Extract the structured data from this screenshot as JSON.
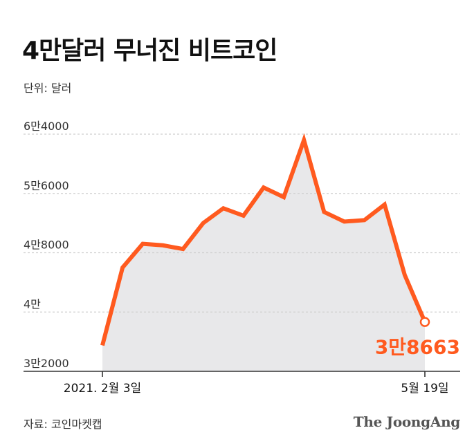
{
  "header": {
    "title": "4만달러 무너진 비트코인",
    "unit": "단위: 달러"
  },
  "footer": {
    "source": "자료: 코인마켓캡",
    "brand": "The JoongAng"
  },
  "colors": {
    "line": "#ff5a1f",
    "area": "#e8e8ea",
    "grid": "#cfcfcf",
    "axis": "#333333",
    "text": "#333333",
    "end_label": "#ff5a1f"
  },
  "chart_data": {
    "type": "area",
    "title": "4만달러 무너진 비트코인",
    "ylabel": "단위: 달러",
    "ylim": [
      32000,
      64000
    ],
    "y_ticks": [
      {
        "value": 32000,
        "label": "3만2000"
      },
      {
        "value": 40000,
        "label": "4만"
      },
      {
        "value": 48000,
        "label": "4만8000"
      },
      {
        "value": 56000,
        "label": "5만6000"
      },
      {
        "value": 64000,
        "label": "6만4000"
      }
    ],
    "x_labels": [
      {
        "text": "2021. 2월 3일",
        "index": 0
      },
      {
        "text": "5월 19일",
        "index": 16
      }
    ],
    "x": [
      "2021-02-03",
      "2021-02-10",
      "2021-02-17",
      "2021-02-24",
      "2021-03-03",
      "2021-03-10",
      "2021-03-17",
      "2021-03-24",
      "2021-03-31",
      "2021-04-07",
      "2021-04-14",
      "2021-04-21",
      "2021-04-28",
      "2021-05-05",
      "2021-05-12",
      "2021-05-16",
      "2021-05-19"
    ],
    "values": [
      35500,
      46000,
      49200,
      49000,
      48500,
      52000,
      54000,
      53000,
      56800,
      55500,
      63200,
      53500,
      52200,
      52400,
      54500,
      45000,
      38663
    ],
    "end_label": "3만8663",
    "grid": true,
    "area_fill": true
  }
}
